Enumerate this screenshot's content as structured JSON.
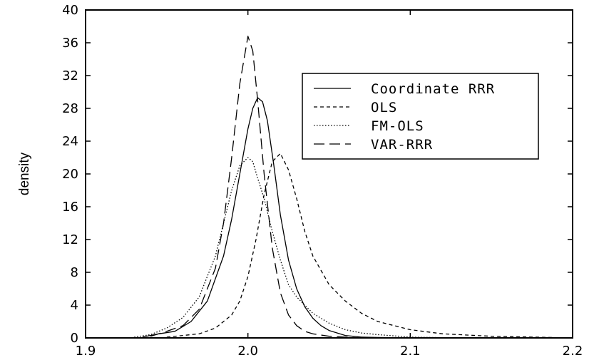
{
  "chart_data": {
    "type": "line",
    "title": "",
    "xlabel": "",
    "ylabel": "density",
    "xlim": [
      1.9,
      2.2
    ],
    "ylim": [
      0,
      40
    ],
    "x_ticks": [
      1.9,
      2.0,
      2.1,
      2.2
    ],
    "x_tick_labels": [
      "1.9",
      "2.0",
      "2.1",
      "2.2"
    ],
    "y_ticks": [
      0,
      4,
      8,
      12,
      16,
      20,
      24,
      28,
      32,
      36,
      40
    ],
    "y_tick_labels": [
      "0",
      "4",
      "8",
      "12",
      "16",
      "20",
      "24",
      "28",
      "32",
      "36",
      "40"
    ],
    "grid": false,
    "legend_position": "top-right",
    "series": [
      {
        "name": "Coordinate RRR",
        "style": "solid",
        "x": [
          1.935,
          1.945,
          1.955,
          1.965,
          1.975,
          1.985,
          1.99,
          1.995,
          2.0,
          2.003,
          2.006,
          2.009,
          2.012,
          2.016,
          2.02,
          2.025,
          2.03,
          2.035,
          2.04,
          2.045,
          2.05,
          2.06,
          2.07,
          2.08,
          2.1
        ],
        "y": [
          0.1,
          0.5,
          0.8,
          2.0,
          4.5,
          10.0,
          14.5,
          20.0,
          25.5,
          28.0,
          29.3,
          28.8,
          26.5,
          21.0,
          15.0,
          9.5,
          6.0,
          3.8,
          2.4,
          1.5,
          0.9,
          0.3,
          0.1,
          0.05,
          0.0
        ]
      },
      {
        "name": "OLS",
        "style": "short-dash",
        "x": [
          1.95,
          1.97,
          1.98,
          1.99,
          1.995,
          2.0,
          2.005,
          2.01,
          2.015,
          2.02,
          2.025,
          2.03,
          2.035,
          2.04,
          2.05,
          2.06,
          2.07,
          2.08,
          2.1,
          2.12,
          2.15,
          2.2
        ],
        "y": [
          0.1,
          0.5,
          1.2,
          2.8,
          4.5,
          7.5,
          12.0,
          17.5,
          21.5,
          22.5,
          20.5,
          17.0,
          13.0,
          10.0,
          6.5,
          4.5,
          3.0,
          2.0,
          1.0,
          0.5,
          0.2,
          0.0
        ]
      },
      {
        "name": "FM-OLS",
        "style": "dotted",
        "x": [
          1.93,
          1.94,
          1.95,
          1.96,
          1.97,
          1.98,
          1.985,
          1.99,
          1.995,
          2.0,
          2.003,
          2.006,
          2.01,
          2.015,
          2.02,
          2.025,
          2.03,
          2.04,
          2.05,
          2.06,
          2.07,
          2.08,
          2.1,
          2.13
        ],
        "y": [
          0.1,
          0.4,
          1.2,
          2.5,
          5.0,
          10.0,
          14.0,
          18.0,
          21.0,
          22.0,
          21.5,
          19.5,
          17.0,
          13.0,
          9.5,
          6.5,
          5.0,
          3.0,
          1.8,
          1.0,
          0.6,
          0.4,
          0.1,
          0.0
        ]
      },
      {
        "name": "VAR-RRR",
        "style": "long-dash",
        "x": [
          1.94,
          1.95,
          1.96,
          1.97,
          1.98,
          1.985,
          1.99,
          1.995,
          2.0,
          2.003,
          2.006,
          2.01,
          2.015,
          2.02,
          2.025,
          2.03,
          2.035,
          2.04,
          2.05,
          2.06,
          2.07
        ],
        "y": [
          0.2,
          0.8,
          1.5,
          3.5,
          8.5,
          14.0,
          22.0,
          31.0,
          36.8,
          35.0,
          29.0,
          20.0,
          11.0,
          5.5,
          2.8,
          1.5,
          0.8,
          0.5,
          0.2,
          0.1,
          0.0
        ]
      }
    ]
  }
}
